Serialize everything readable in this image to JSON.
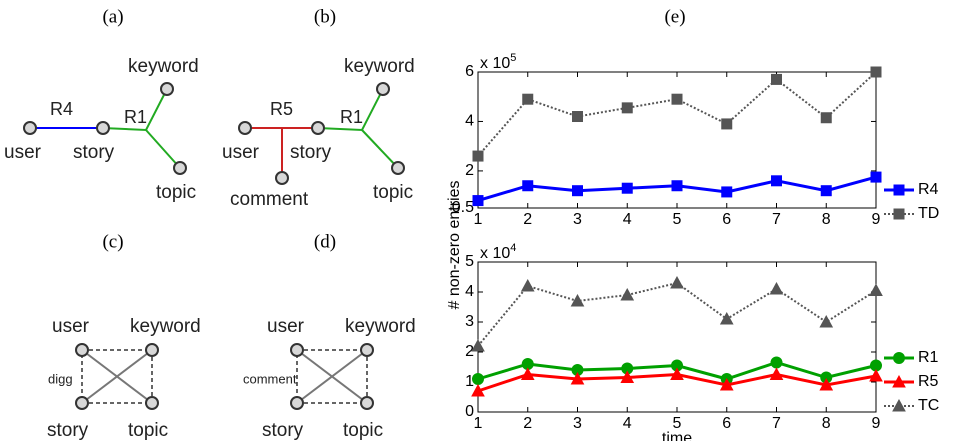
{
  "diagrams": [
    {
      "panel": "(a)",
      "node_labels": [
        "user",
        "story",
        "keyword",
        "topic"
      ],
      "edge_labels": [
        "R4",
        "R1"
      ]
    },
    {
      "panel": "(b)",
      "node_labels": [
        "user",
        "story",
        "comment",
        "keyword",
        "topic"
      ],
      "edge_labels": [
        "R5",
        "R1"
      ]
    },
    {
      "panel": "(c)",
      "node_labels": [
        "user",
        "keyword",
        "story",
        "topic"
      ],
      "edge_labels": [
        "digg"
      ]
    },
    {
      "panel": "(d)",
      "node_labels": [
        "user",
        "keyword",
        "story",
        "topic"
      ],
      "edge_labels": [
        "comment"
      ]
    }
  ],
  "panel_e": "(e)",
  "chart_data": [
    {
      "type": "line",
      "ylabel": "# non-zero entries",
      "scale_label": "x 10",
      "scale_exponent": "5",
      "x": [
        1,
        2,
        3,
        4,
        5,
        6,
        7,
        8,
        9
      ],
      "xlim": [
        1,
        9
      ],
      "xticks": [
        1,
        2,
        3,
        4,
        5,
        6,
        7,
        8,
        9
      ],
      "ylim": [
        0.5,
        6
      ],
      "yticks": [
        0.5,
        2,
        4,
        6
      ],
      "series": [
        {
          "name": "R4",
          "color": "#0000ff",
          "marker": "square",
          "linestyle": "solid",
          "values": [
            0.8,
            1.4,
            1.2,
            1.3,
            1.4,
            1.15,
            1.6,
            1.2,
            1.75
          ]
        },
        {
          "name": "TD",
          "color": "#555555",
          "marker": "square",
          "linestyle": "dotted",
          "values": [
            2.6,
            4.9,
            4.2,
            4.55,
            4.9,
            3.9,
            5.7,
            4.15,
            6.0
          ]
        }
      ]
    },
    {
      "type": "line",
      "xlabel": "time",
      "scale_label": "x 10",
      "scale_exponent": "4",
      "x": [
        1,
        2,
        3,
        4,
        5,
        6,
        7,
        8,
        9
      ],
      "xlim": [
        1,
        9
      ],
      "xticks": [
        1,
        2,
        3,
        4,
        5,
        6,
        7,
        8,
        9
      ],
      "ylim": [
        0,
        5
      ],
      "yticks": [
        0,
        1,
        2,
        3,
        4,
        5
      ],
      "series": [
        {
          "name": "R1",
          "color": "#00a000",
          "marker": "circle",
          "linestyle": "solid",
          "values": [
            1.1,
            1.6,
            1.4,
            1.45,
            1.55,
            1.1,
            1.65,
            1.15,
            1.55
          ]
        },
        {
          "name": "R5",
          "color": "#ff0000",
          "marker": "triangle",
          "linestyle": "solid",
          "values": [
            0.7,
            1.25,
            1.1,
            1.15,
            1.25,
            0.9,
            1.25,
            0.9,
            1.2
          ]
        },
        {
          "name": "TC",
          "color": "#555555",
          "marker": "triangle",
          "linestyle": "dotted",
          "values": [
            2.2,
            4.2,
            3.7,
            3.9,
            4.3,
            3.1,
            4.1,
            3.0,
            4.05
          ]
        }
      ]
    }
  ]
}
